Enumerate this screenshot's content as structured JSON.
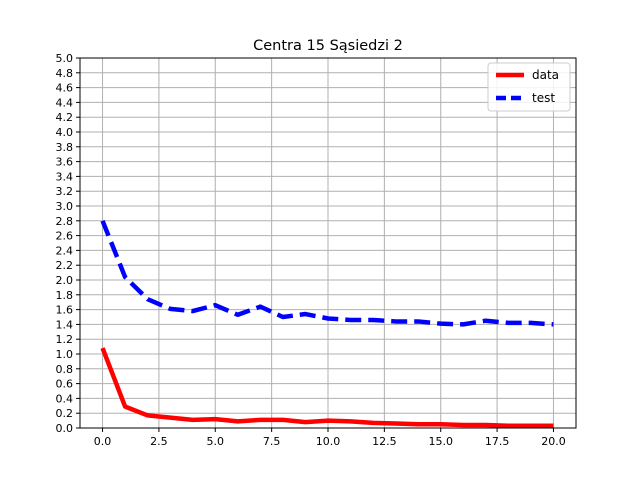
{
  "chart_data": {
    "type": "line",
    "title": "Centra 15 Sąsiedzi 2",
    "xlabel": "",
    "ylabel": "",
    "xlim": [
      -1,
      21
    ],
    "ylim": [
      0,
      5
    ],
    "x_ticks": [
      0.0,
      2.5,
      5.0,
      7.5,
      10.0,
      12.5,
      15.0,
      17.5,
      20.0
    ],
    "x_tick_labels": [
      "0.0",
      "2.5",
      "5.0",
      "7.5",
      "10.0",
      "12.5",
      "15.0",
      "17.5",
      "20.0"
    ],
    "y_ticks": [
      0.0,
      0.2,
      0.4,
      0.6,
      0.8,
      1.0,
      1.2,
      1.4,
      1.6,
      1.8,
      2.0,
      2.2,
      2.4,
      2.6,
      2.8,
      3.0,
      3.2,
      3.4,
      3.6,
      3.8,
      4.0,
      4.2,
      4.4,
      4.6,
      4.8,
      5.0
    ],
    "y_tick_labels": [
      "0.0",
      "0.2",
      "0.4",
      "0.6",
      "0.8",
      "1.0",
      "1.2",
      "1.4",
      "1.6",
      "1.8",
      "2.0",
      "2.2",
      "2.4",
      "2.6",
      "2.8",
      "3.0",
      "3.2",
      "3.4",
      "3.6",
      "3.8",
      "4.0",
      "4.2",
      "4.4",
      "4.6",
      "4.8",
      "5.0"
    ],
    "grid": true,
    "legend_position": "top-right",
    "x": [
      0,
      1,
      2,
      3,
      4,
      5,
      6,
      7,
      8,
      9,
      10,
      11,
      12,
      13,
      14,
      15,
      16,
      17,
      18,
      19,
      20
    ],
    "series": [
      {
        "name": "data",
        "color": "#ff0000",
        "style": "solid",
        "values": [
          1.08,
          0.29,
          0.17,
          0.14,
          0.11,
          0.12,
          0.09,
          0.11,
          0.11,
          0.08,
          0.1,
          0.09,
          0.07,
          0.06,
          0.05,
          0.05,
          0.04,
          0.04,
          0.03,
          0.03,
          0.03
        ]
      },
      {
        "name": "test",
        "color": "#0000ff",
        "style": "dashed",
        "values": [
          2.8,
          2.04,
          1.74,
          1.61,
          1.58,
          1.66,
          1.53,
          1.64,
          1.5,
          1.54,
          1.48,
          1.46,
          1.46,
          1.44,
          1.44,
          1.41,
          1.4,
          1.45,
          1.42,
          1.42,
          1.4
        ]
      }
    ]
  }
}
